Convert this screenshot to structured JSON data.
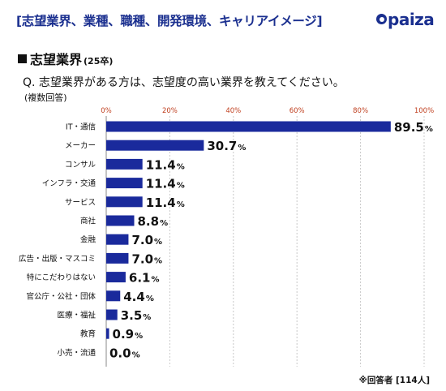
{
  "header": {
    "title": "[志望業界、業種、職種、開発環境、キャリアイメージ]",
    "logo_text": "paiza"
  },
  "section": {
    "heading": "志望業界",
    "sub": "(25卒)"
  },
  "question": "Q. 志望業界がある方は、志望度の高い業界を教えてください。",
  "note": "(複数回答)",
  "footnote": "※回答者 [114人]",
  "colors": {
    "bar": "#1a2a9c",
    "grid": "#c8c8c8",
    "tick": "#c04020",
    "title": "#1a2f8f"
  },
  "chart_data": {
    "type": "bar",
    "orientation": "horizontal",
    "categories": [
      "IT・通信",
      "メーカー",
      "コンサル",
      "インフラ・交通",
      "サービス",
      "商社",
      "金融",
      "広告・出版・マスコミ",
      "特にこだわりはない",
      "官公庁・公社・団体",
      "医療・福祉",
      "教育",
      "小売・流通"
    ],
    "values": [
      89.5,
      30.7,
      11.4,
      11.4,
      11.4,
      8.8,
      7.0,
      7.0,
      6.1,
      4.4,
      3.5,
      0.9,
      0.0
    ],
    "value_labels": [
      "89.5",
      "30.7",
      "11.4",
      "11.4",
      "11.4",
      "8.8",
      "7.0",
      "7.0",
      "6.1",
      "4.4",
      "3.5",
      "0.9",
      "0.0"
    ],
    "value_suffix": "%",
    "ticks": [
      0,
      20,
      40,
      60,
      80,
      100
    ],
    "tick_labels": [
      "0%",
      "20%",
      "40%",
      "60%",
      "80%",
      "100%"
    ],
    "xlim": [
      0,
      100
    ],
    "grid": true
  }
}
